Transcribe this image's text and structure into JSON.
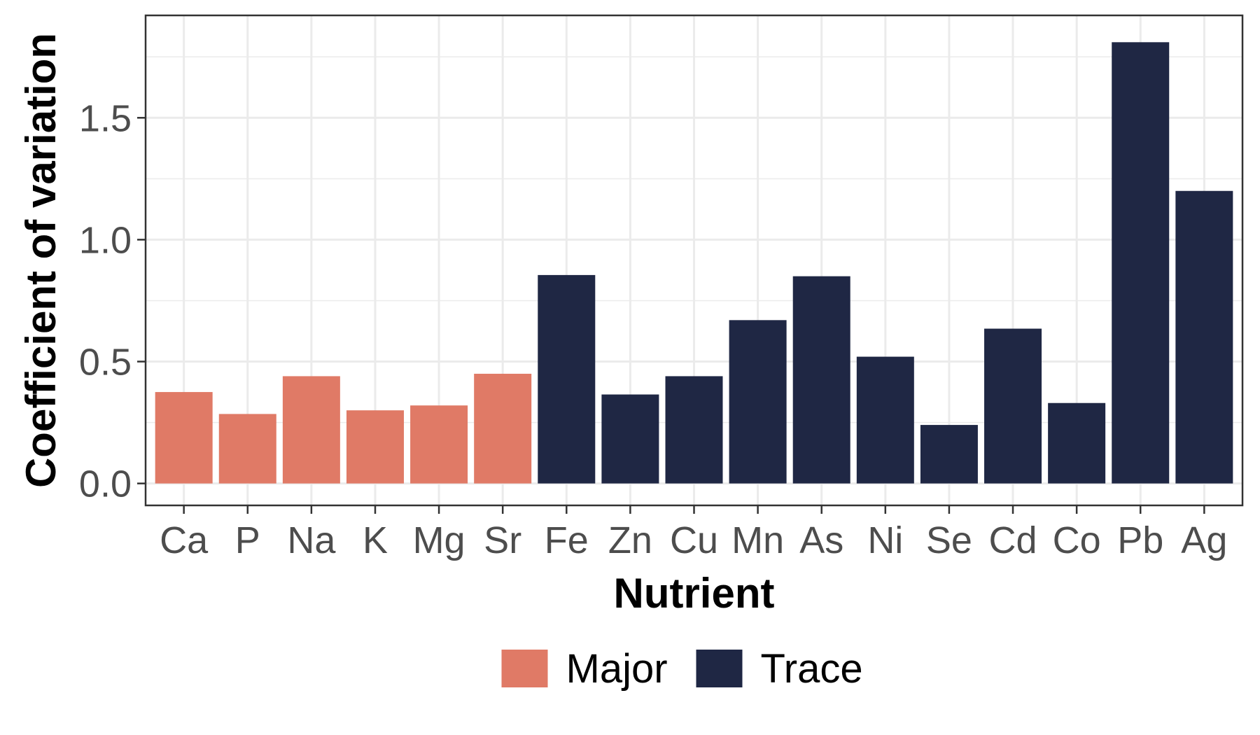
{
  "chart_data": {
    "type": "bar",
    "categories": [
      "Ca",
      "P",
      "Na",
      "K",
      "Mg",
      "Sr",
      "Fe",
      "Zn",
      "Cu",
      "Mn",
      "As",
      "Ni",
      "Se",
      "Cd",
      "Co",
      "Pb",
      "Ag"
    ],
    "values": [
      0.375,
      0.285,
      0.44,
      0.3,
      0.32,
      0.45,
      0.855,
      0.365,
      0.44,
      0.67,
      0.85,
      0.52,
      0.24,
      0.635,
      0.33,
      1.81,
      1.2
    ],
    "groups": [
      "Major",
      "Major",
      "Major",
      "Major",
      "Major",
      "Major",
      "Trace",
      "Trace",
      "Trace",
      "Trace",
      "Trace",
      "Trace",
      "Trace",
      "Trace",
      "Trace",
      "Trace",
      "Trace"
    ],
    "legend": [
      {
        "name": "Major",
        "color": "#E07A66"
      },
      {
        "name": "Trace",
        "color": "#1F2744"
      }
    ],
    "xlabel": "Nutrient",
    "ylabel": "Coefficient of variation",
    "ylim": [
      -0.09,
      1.92
    ],
    "yticks": [
      0.0,
      0.5,
      1.0,
      1.5
    ],
    "ytick_labels": [
      "0.0",
      "0.5",
      "1.0",
      "1.5"
    ],
    "grid": true,
    "legend_position": "bottom"
  }
}
